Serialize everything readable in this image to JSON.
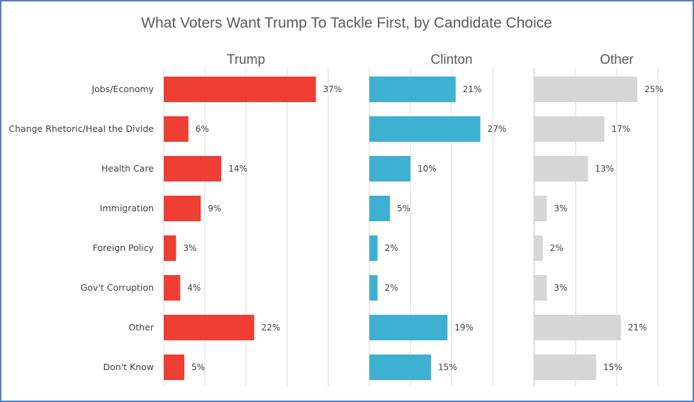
{
  "chart_data": {
    "type": "bar",
    "orientation": "horizontal",
    "title": "What Voters Want Trump To Tackle First, by Candidate Choice",
    "categories": [
      "Jobs/Economy",
      "Change Rhetoric/Heal the Divide",
      "Health Care",
      "Immigration",
      "Foreign Policy",
      "Gov't Corruption",
      "Other",
      "Don't Know"
    ],
    "value_suffix": "%",
    "grid": true,
    "xlim": [
      0,
      50
    ],
    "series": [
      {
        "name": "Trump",
        "color": "#ef3e33",
        "values": [
          37,
          6,
          14,
          9,
          3,
          4,
          22,
          5
        ]
      },
      {
        "name": "Clinton",
        "color": "#3eb0d2",
        "values": [
          21,
          27,
          10,
          5,
          2,
          2,
          19,
          15
        ]
      },
      {
        "name": "Other",
        "color": "#d6d6d6",
        "values": [
          25,
          17,
          13,
          3,
          2,
          3,
          21,
          15
        ]
      }
    ]
  }
}
